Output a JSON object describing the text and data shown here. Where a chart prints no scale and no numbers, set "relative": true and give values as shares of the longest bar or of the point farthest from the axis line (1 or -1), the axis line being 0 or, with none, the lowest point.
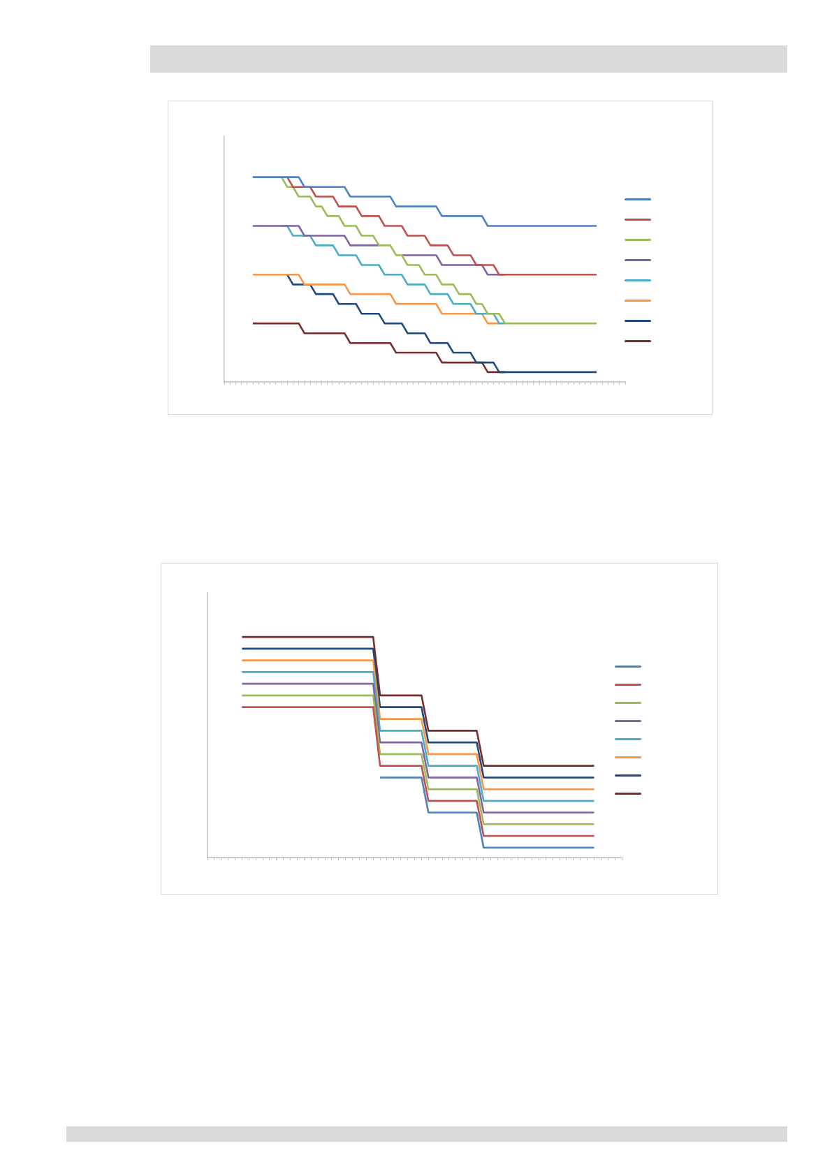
{
  "chart_data": [
    {
      "type": "line",
      "relative": true,
      "categories": [
        null,
        null,
        null,
        null,
        null,
        null,
        null,
        null,
        null,
        null,
        null,
        null,
        null,
        null,
        null,
        null,
        null,
        null,
        null,
        null,
        null,
        null,
        null,
        null,
        null,
        null,
        null,
        null,
        null,
        null,
        null,
        null,
        null,
        null,
        null,
        null,
        null,
        null,
        null,
        null,
        null,
        null,
        null,
        null,
        null,
        null,
        null,
        null,
        null,
        null,
        null,
        null,
        null,
        null,
        null,
        null,
        null,
        null,
        null,
        null,
        null,
        null,
        null,
        null,
        null,
        null,
        null,
        null,
        null,
        null,
        null
      ],
      "series": [
        {
          "color": "#4f81bd",
          "values": [
            null,
            null,
            null,
            null,
            null,
            1,
            1,
            1,
            1,
            1,
            1,
            1,
            1,
            1,
            0.952,
            0.952,
            0.952,
            0.952,
            0.952,
            0.952,
            0.952,
            0.952,
            0.905,
            0.905,
            0.905,
            0.905,
            0.905,
            0.905,
            0.905,
            0.905,
            0.857,
            0.857,
            0.857,
            0.857,
            0.857,
            0.857,
            0.857,
            0.857,
            0.81,
            0.81,
            0.81,
            0.81,
            0.81,
            0.81,
            0.81,
            0.81,
            0.762,
            0.762,
            0.762,
            0.762,
            0.762,
            0.762,
            0.762,
            0.762,
            0.762,
            0.762,
            0.762,
            0.762,
            0.762,
            0.762,
            0.762,
            0.762,
            0.762,
            0.762,
            0.762,
            0.762,
            null,
            null,
            null,
            null,
            null
          ]
        },
        {
          "color": "#c0504d",
          "values": [
            null,
            null,
            null,
            null,
            null,
            null,
            null,
            null,
            null,
            null,
            null,
            1,
            0.952,
            0.952,
            0.952,
            0.952,
            0.905,
            0.905,
            0.905,
            0.905,
            0.857,
            0.857,
            0.857,
            0.857,
            0.81,
            0.81,
            0.81,
            0.81,
            0.762,
            0.762,
            0.762,
            0.762,
            0.714,
            0.714,
            0.714,
            0.714,
            0.667,
            0.667,
            0.667,
            0.667,
            0.619,
            0.619,
            0.619,
            0.619,
            0.571,
            0.571,
            0.571,
            0.571,
            0.524,
            0.524,
            0.524,
            0.524,
            0.524,
            0.524,
            0.524,
            0.524,
            0.524,
            0.524,
            0.524,
            0.524,
            0.524,
            0.524,
            0.524,
            0.524,
            0.524,
            0.524,
            null,
            null,
            null,
            null,
            null
          ]
        },
        {
          "color": "#9bbb59",
          "values": [
            null,
            null,
            null,
            null,
            null,
            null,
            null,
            null,
            null,
            null,
            1,
            0.952,
            0.952,
            0.905,
            0.905,
            0.905,
            0.857,
            0.857,
            0.81,
            0.81,
            0.81,
            0.762,
            0.762,
            0.762,
            0.714,
            0.714,
            0.714,
            0.667,
            0.667,
            0.667,
            0.619,
            0.619,
            0.571,
            0.571,
            0.571,
            0.524,
            0.524,
            0.524,
            0.476,
            0.476,
            0.476,
            0.429,
            0.429,
            0.429,
            0.381,
            0.381,
            0.333,
            0.333,
            0.333,
            0.286,
            0.286,
            0.286,
            0.286,
            0.286,
            0.286,
            0.286,
            0.286,
            0.286,
            0.286,
            0.286,
            0.286,
            0.286,
            0.286,
            0.286,
            0.286,
            0.286,
            null,
            null,
            null,
            null,
            null
          ]
        },
        {
          "color": "#8064a2",
          "values": [
            null,
            null,
            null,
            null,
            null,
            0.762,
            0.762,
            0.762,
            0.762,
            0.762,
            0.762,
            0.762,
            0.762,
            0.762,
            0.714,
            0.714,
            0.714,
            0.714,
            0.714,
            0.714,
            0.714,
            0.714,
            0.667,
            0.667,
            0.667,
            0.667,
            0.667,
            0.667,
            null,
            null,
            null,
            0.619,
            0.619,
            0.619,
            0.619,
            0.619,
            0.619,
            0.619,
            0.571,
            0.571,
            0.571,
            0.571,
            0.571,
            0.571,
            0.571,
            0.571,
            0.524,
            0.524,
            0.524,
            0.524,
            null,
            null,
            null,
            null,
            null,
            null,
            null,
            null,
            null,
            null,
            null,
            null,
            null,
            null,
            null,
            null,
            null,
            null,
            null,
            null,
            null
          ]
        },
        {
          "color": "#4bacc6",
          "values": [
            null,
            null,
            null,
            null,
            null,
            null,
            null,
            null,
            null,
            null,
            0.762,
            0.762,
            0.714,
            0.714,
            0.714,
            0.714,
            0.667,
            0.667,
            0.667,
            0.667,
            0.619,
            0.619,
            0.619,
            0.619,
            0.571,
            0.571,
            0.571,
            0.571,
            0.524,
            0.524,
            0.524,
            0.524,
            0.476,
            0.476,
            0.476,
            0.476,
            0.429,
            0.429,
            0.429,
            0.429,
            0.381,
            0.381,
            0.381,
            0.381,
            0.333,
            0.333,
            0.333,
            0.333,
            0.286,
            0.286,
            null,
            null,
            null,
            null,
            null,
            null,
            null,
            null,
            null,
            null,
            null,
            null,
            null,
            null,
            null,
            null,
            null,
            null,
            null,
            null,
            null
          ]
        },
        {
          "color": "#f79646",
          "values": [
            null,
            null,
            null,
            null,
            null,
            0.524,
            0.524,
            0.524,
            0.524,
            0.524,
            0.524,
            0.524,
            0.524,
            0.524,
            0.476,
            0.476,
            0.476,
            0.476,
            0.476,
            0.476,
            0.476,
            0.476,
            0.429,
            0.429,
            0.429,
            0.429,
            0.429,
            0.429,
            0.429,
            0.429,
            0.381,
            0.381,
            0.381,
            0.381,
            0.381,
            0.381,
            0.381,
            0.381,
            0.333,
            0.333,
            0.333,
            0.333,
            0.333,
            0.333,
            0.333,
            0.333,
            0.286,
            0.286,
            0.286,
            null,
            null,
            null,
            null,
            null,
            null,
            null,
            null,
            null,
            null,
            null,
            null,
            null,
            null,
            null,
            null,
            null,
            null,
            null,
            null,
            null,
            null
          ]
        },
        {
          "color": "#1f497d",
          "values": [
            null,
            null,
            null,
            null,
            null,
            null,
            null,
            null,
            null,
            null,
            null,
            0.524,
            0.476,
            0.476,
            0.476,
            0.476,
            0.429,
            0.429,
            0.429,
            0.429,
            0.381,
            0.381,
            0.381,
            0.381,
            0.333,
            0.333,
            0.333,
            0.333,
            0.286,
            0.286,
            0.286,
            0.286,
            0.238,
            0.238,
            0.238,
            0.238,
            0.19,
            0.19,
            0.19,
            0.19,
            0.143,
            0.143,
            0.143,
            0.143,
            0.095,
            0.095,
            0.095,
            0.095,
            0.048,
            0.048,
            0.048,
            0.048,
            0.048,
            0.048,
            0.048,
            0.048,
            0.048,
            0.048,
            0.048,
            0.048,
            0.048,
            0.048,
            0.048,
            0.048,
            0.048,
            0.048,
            null,
            null,
            null,
            null,
            null
          ]
        },
        {
          "color": "#772c2a",
          "values": [
            null,
            null,
            null,
            null,
            null,
            0.286,
            0.286,
            0.286,
            0.286,
            0.286,
            0.286,
            0.286,
            0.286,
            0.286,
            0.238,
            0.238,
            0.238,
            0.238,
            0.238,
            0.238,
            0.238,
            0.238,
            0.19,
            0.19,
            0.19,
            0.19,
            0.19,
            0.19,
            0.19,
            0.19,
            0.143,
            0.143,
            0.143,
            0.143,
            0.143,
            0.143,
            0.143,
            0.143,
            0.095,
            0.095,
            0.095,
            0.095,
            0.095,
            0.095,
            0.095,
            0.095,
            0.048,
            0.048,
            0.048,
            0.048,
            null,
            null,
            null,
            null,
            null,
            null,
            null,
            null,
            null,
            null,
            null,
            null,
            null,
            null,
            null,
            null,
            null,
            null,
            null,
            null,
            null
          ]
        }
      ]
    },
    {
      "type": "line",
      "relative": true,
      "categories": [
        null,
        null,
        null,
        null,
        null,
        null,
        null,
        null,
        null,
        null,
        null,
        null,
        null,
        null,
        null,
        null,
        null,
        null,
        null,
        null,
        null,
        null,
        null,
        null,
        null,
        null,
        null,
        null,
        null,
        null,
        null,
        null,
        null,
        null,
        null,
        null,
        null,
        null,
        null,
        null,
        null,
        null,
        null,
        null,
        null,
        null,
        null,
        null,
        null,
        null,
        null,
        null,
        null,
        null,
        null,
        null,
        null,
        null,
        null,
        null,
        null
      ],
      "series": [
        {
          "color": "#4f81bd",
          "values": [
            null,
            null,
            null,
            null,
            null,
            null,
            null,
            null,
            null,
            null,
            null,
            null,
            null,
            null,
            null,
            null,
            null,
            null,
            null,
            null,
            null,
            null,
            null,
            null,
            null,
            0.363,
            0.363,
            0.363,
            0.363,
            0.363,
            0.363,
            0.363,
            0.204,
            0.204,
            0.204,
            0.204,
            0.204,
            0.204,
            0.204,
            0.204,
            0.045,
            0.045,
            0.045,
            0.045,
            0.045,
            0.045,
            0.045,
            0.045,
            0.045,
            0.045,
            0.045,
            0.045,
            0.045,
            0.045,
            0.045,
            0.045,
            0.045,
            null,
            null,
            null,
            null
          ]
        },
        {
          "color": "#c0504d",
          "values": [
            null,
            null,
            null,
            null,
            null,
            0.682,
            0.682,
            0.682,
            0.682,
            0.682,
            0.682,
            0.682,
            0.682,
            0.682,
            0.682,
            0.682,
            0.682,
            0.682,
            0.682,
            0.682,
            0.682,
            0.682,
            0.682,
            0.682,
            0.682,
            0.416,
            0.416,
            0.416,
            0.416,
            0.416,
            0.416,
            0.416,
            0.257,
            0.257,
            0.257,
            0.257,
            0.257,
            0.257,
            0.257,
            0.257,
            0.098,
            0.098,
            0.098,
            0.098,
            0.098,
            0.098,
            0.098,
            0.098,
            0.098,
            0.098,
            0.098,
            0.098,
            0.098,
            0.098,
            0.098,
            0.098,
            0.098,
            null,
            null,
            null,
            null
          ]
        },
        {
          "color": "#9bbb59",
          "values": [
            null,
            null,
            null,
            null,
            null,
            0.735,
            0.735,
            0.735,
            0.735,
            0.735,
            0.735,
            0.735,
            0.735,
            0.735,
            0.735,
            0.735,
            0.735,
            0.735,
            0.735,
            0.735,
            0.735,
            0.735,
            0.735,
            0.735,
            0.735,
            0.469,
            0.469,
            0.469,
            0.469,
            0.469,
            0.469,
            0.469,
            0.31,
            0.31,
            0.31,
            0.31,
            0.31,
            0.31,
            0.31,
            0.31,
            0.151,
            0.151,
            0.151,
            0.151,
            0.151,
            0.151,
            0.151,
            0.151,
            0.151,
            0.151,
            0.151,
            0.151,
            0.151,
            0.151,
            0.151,
            0.151,
            0.151,
            null,
            null,
            null,
            null
          ]
        },
        {
          "color": "#8064a2",
          "values": [
            null,
            null,
            null,
            null,
            null,
            0.788,
            0.788,
            0.788,
            0.788,
            0.788,
            0.788,
            0.788,
            0.788,
            0.788,
            0.788,
            0.788,
            0.788,
            0.788,
            0.788,
            0.788,
            0.788,
            0.788,
            0.788,
            0.788,
            0.788,
            0.522,
            0.522,
            0.522,
            0.522,
            0.522,
            0.522,
            0.522,
            0.363,
            0.363,
            0.363,
            0.363,
            0.363,
            0.363,
            0.363,
            0.363,
            0.204,
            0.204,
            0.204,
            0.204,
            0.204,
            0.204,
            0.204,
            0.204,
            0.204,
            0.204,
            0.204,
            0.204,
            0.204,
            0.204,
            0.204,
            0.204,
            0.204,
            null,
            null,
            null,
            null
          ]
        },
        {
          "color": "#4bacc6",
          "values": [
            null,
            null,
            null,
            null,
            null,
            0.841,
            0.841,
            0.841,
            0.841,
            0.841,
            0.841,
            0.841,
            0.841,
            0.841,
            0.841,
            0.841,
            0.841,
            0.841,
            0.841,
            0.841,
            0.841,
            0.841,
            0.841,
            0.841,
            0.841,
            0.575,
            0.575,
            0.575,
            0.575,
            0.575,
            0.575,
            0.575,
            0.416,
            0.416,
            0.416,
            0.416,
            0.416,
            0.416,
            0.416,
            0.416,
            0.257,
            0.257,
            0.257,
            0.257,
            0.257,
            0.257,
            0.257,
            0.257,
            0.257,
            0.257,
            0.257,
            0.257,
            0.257,
            0.257,
            0.257,
            0.257,
            0.257,
            null,
            null,
            null,
            null
          ]
        },
        {
          "color": "#f79646",
          "values": [
            null,
            null,
            null,
            null,
            null,
            0.894,
            0.894,
            0.894,
            0.894,
            0.894,
            0.894,
            0.894,
            0.894,
            0.894,
            0.894,
            0.894,
            0.894,
            0.894,
            0.894,
            0.894,
            0.894,
            0.894,
            0.894,
            0.894,
            0.894,
            0.628,
            0.628,
            0.628,
            0.628,
            0.628,
            0.628,
            0.628,
            0.469,
            0.469,
            0.469,
            0.469,
            0.469,
            0.469,
            0.469,
            0.469,
            0.31,
            0.31,
            0.31,
            0.31,
            0.31,
            0.31,
            0.31,
            0.31,
            0.31,
            0.31,
            0.31,
            0.31,
            0.31,
            0.31,
            0.31,
            0.31,
            0.31,
            null,
            null,
            null,
            null
          ]
        },
        {
          "color": "#1f497d",
          "values": [
            null,
            null,
            null,
            null,
            null,
            0.947,
            0.947,
            0.947,
            0.947,
            0.947,
            0.947,
            0.947,
            0.947,
            0.947,
            0.947,
            0.947,
            0.947,
            0.947,
            0.947,
            0.947,
            0.947,
            0.947,
            0.947,
            0.947,
            0.947,
            0.682,
            0.682,
            0.682,
            0.682,
            0.682,
            0.682,
            0.682,
            0.522,
            0.522,
            0.522,
            0.522,
            0.522,
            0.522,
            0.522,
            0.522,
            0.363,
            0.363,
            0.363,
            0.363,
            0.363,
            0.363,
            0.363,
            0.363,
            0.363,
            0.363,
            0.363,
            0.363,
            0.363,
            0.363,
            0.363,
            0.363,
            0.363,
            null,
            null,
            null,
            null
          ]
        },
        {
          "color": "#772c2a",
          "values": [
            null,
            null,
            null,
            null,
            null,
            1,
            1,
            1,
            1,
            1,
            1,
            1,
            1,
            1,
            1,
            1,
            1,
            1,
            1,
            1,
            1,
            1,
            1,
            1,
            1,
            0.735,
            0.735,
            0.735,
            0.735,
            0.735,
            0.735,
            0.735,
            0.575,
            0.575,
            0.575,
            0.575,
            0.575,
            0.575,
            0.575,
            0.575,
            0.416,
            0.416,
            0.416,
            0.416,
            0.416,
            0.416,
            0.416,
            0.416,
            0.416,
            0.416,
            0.416,
            0.416,
            0.416,
            0.416,
            0.416,
            0.416,
            0.416,
            null,
            null,
            null,
            null
          ]
        }
      ]
    }
  ]
}
